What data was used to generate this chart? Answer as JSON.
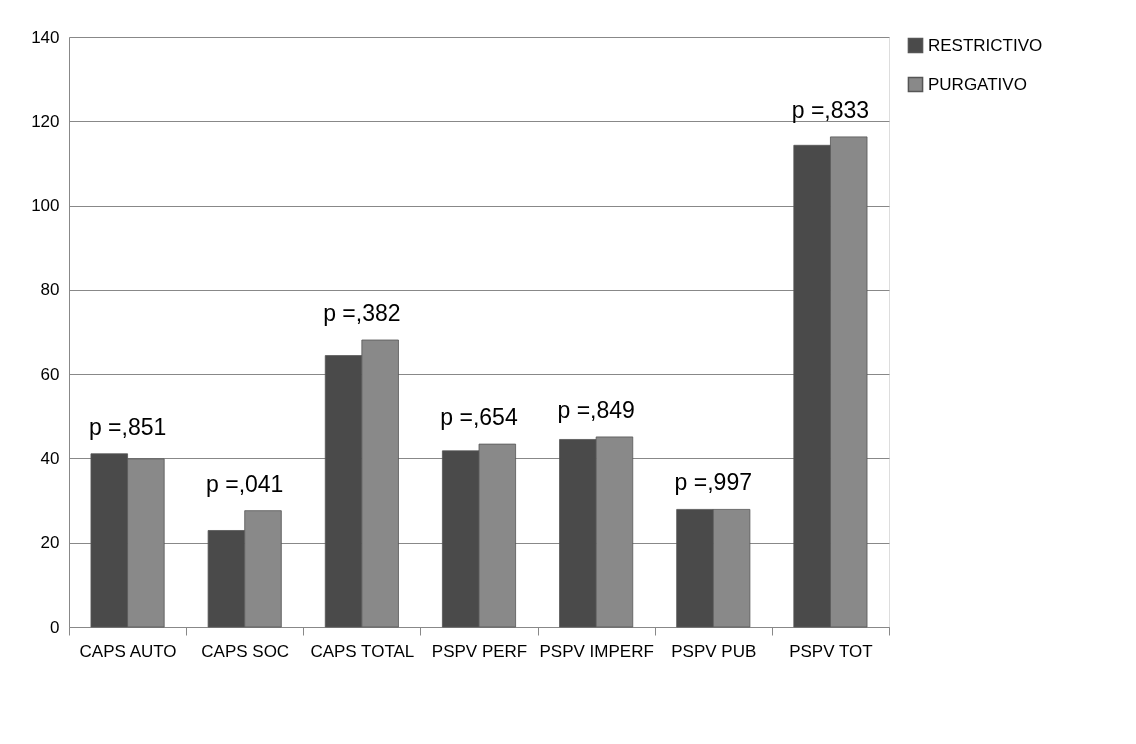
{
  "chart_data": {
    "type": "bar",
    "categories": [
      "CAPS AUTO",
      "CAPS SOC",
      "CAPS TOTAL",
      "PSPV PERF",
      "PSPV IMPERF",
      "PSPV PUB",
      "PSPV TOT"
    ],
    "series": [
      {
        "name": "RESTRICTIVO",
        "color": "#4a4a4a",
        "values": [
          41.1,
          22.9,
          64.4,
          41.8,
          44.5,
          27.9,
          114.3
        ]
      },
      {
        "name": "PURGATIVO",
        "color": "#898989",
        "values": [
          39.9,
          27.6,
          68.1,
          43.4,
          45.1,
          27.9,
          116.3
        ]
      }
    ],
    "ylim": [
      0,
      140
    ],
    "yticks": [
      0,
      20,
      40,
      60,
      80,
      100,
      120,
      140
    ],
    "grid": "y",
    "legend": "right",
    "annotations": [
      "p =,851",
      "p =,041",
      "p =,382",
      "p =,654",
      "p =,849",
      "p =,997",
      "p =,833"
    ]
  }
}
